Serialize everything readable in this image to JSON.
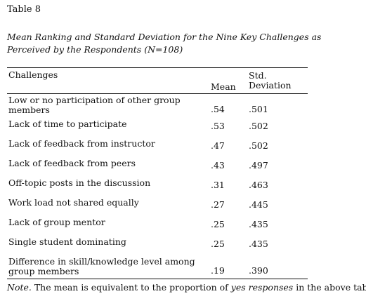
{
  "table_label": "Table 8",
  "caption": "Mean Ranking and Standard Deviation for the Nine Key Challenges as Perceived by the Respondents (N=108)",
  "headers": {
    "challenges": "Challenges",
    "mean": "Mean",
    "std_line1": "Std.",
    "std_line2": "Deviation"
  },
  "rows": [
    {
      "name_l1": "Low or no participation of other group",
      "name_l2": "members",
      "mean": ".54",
      "sd": ".501"
    },
    {
      "name_l1": "Lack of time to participate",
      "name_l2": "",
      "mean": ".53",
      "sd": ".502"
    },
    {
      "name_l1": "Lack of feedback from instructor",
      "name_l2": "",
      "mean": ".47",
      "sd": ".502"
    },
    {
      "name_l1": "Lack of feedback from peers",
      "name_l2": "",
      "mean": ".43",
      "sd": ".497"
    },
    {
      "name_l1": "Off-topic posts in the discussion",
      "name_l2": "",
      "mean": ".31",
      "sd": ".463"
    },
    {
      "name_l1": "Work load not shared equally",
      "name_l2": "",
      "mean": ".27",
      "sd": ".445"
    },
    {
      "name_l1": "Lack of group mentor",
      "name_l2": "",
      "mean": ".25",
      "sd": ".435"
    },
    {
      "name_l1": "Single student dominating",
      "name_l2": "",
      "mean": ".25",
      "sd": ".435"
    },
    {
      "name_l1": "Difference in skill/knowledge level among",
      "name_l2": "group members",
      "mean": ".19",
      "sd": ".390"
    }
  ],
  "note": {
    "label": "Note.",
    "text_before": " The mean is equivalent to the proportion of ",
    "emph": "yes responses",
    "text_after": " in the above table."
  }
}
